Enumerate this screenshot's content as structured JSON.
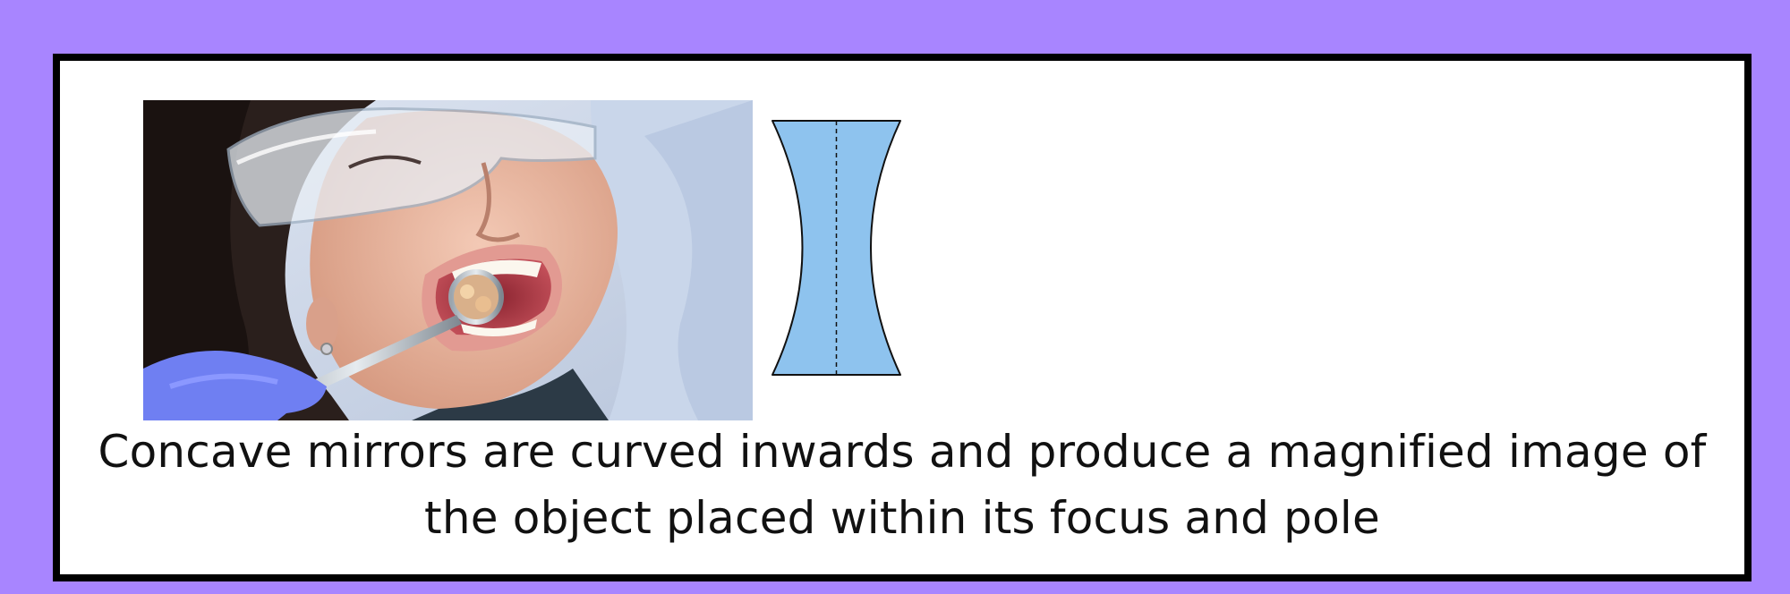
{
  "caption": "Concave mirrors are curved inwards and produce a magnified image of the object placed within its focus and pole",
  "colors": {
    "background": "#a885ff",
    "card": "#ffffff",
    "border": "#000000",
    "lens_fill": "#8ec3ee"
  },
  "images": {
    "photo": "dentist-mirror-photo",
    "lens": "concave-lens-diagram"
  }
}
